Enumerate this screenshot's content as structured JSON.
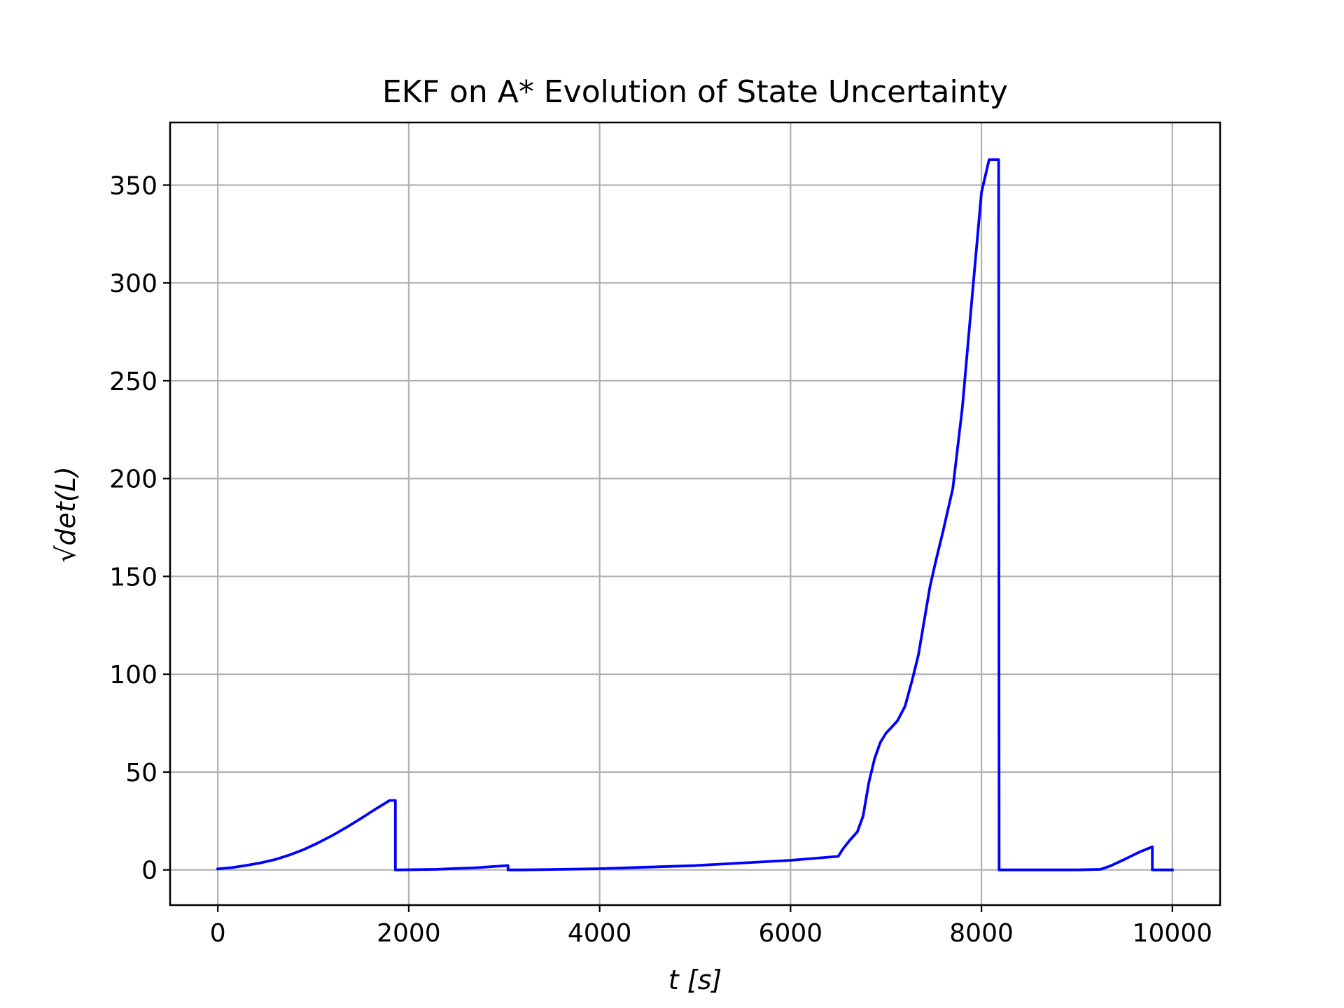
{
  "chart_data": {
    "type": "line",
    "title": "EKF on A* Evolution of State Uncertainty",
    "xlabel": "t [s]",
    "ylabel": "√det(L)",
    "xlim": [
      -500,
      10500
    ],
    "ylim": [
      -18,
      382
    ],
    "xticks": [
      0,
      2000,
      4000,
      6000,
      8000,
      10000
    ],
    "yticks": [
      0,
      50,
      100,
      150,
      200,
      250,
      300,
      350
    ],
    "grid": true,
    "legend": "none",
    "series": [
      {
        "color": "#0000ff",
        "x": [
          0,
          150,
          300,
          450,
          600,
          750,
          900,
          1050,
          1200,
          1350,
          1500,
          1650,
          1800,
          1860,
          1860,
          1900,
          2300,
          2700,
          3040,
          3040,
          3200,
          4000,
          5000,
          6000,
          6500,
          6550,
          6620,
          6700,
          6760,
          6820,
          6880,
          6940,
          7000,
          7060,
          7120,
          7200,
          7280,
          7340,
          7400,
          7460,
          7520,
          7600,
          7700,
          7800,
          7900,
          8000,
          8080,
          8150,
          8180,
          8185,
          8185,
          8400,
          9000,
          9250,
          9350,
          9500,
          9650,
          9790,
          9790,
          10000
        ],
        "y": [
          0.5,
          1.2,
          2.3,
          3.6,
          5.3,
          7.6,
          10.4,
          13.8,
          17.6,
          21.8,
          26.3,
          31.0,
          35.5,
          35.5,
          0,
          0,
          0.3,
          1.1,
          2.2,
          0,
          0,
          0.6,
          2.2,
          4.9,
          6.9,
          10.8,
          15.1,
          19.5,
          27.5,
          44.6,
          56.8,
          65.1,
          69.9,
          73.0,
          76.2,
          83.7,
          98.1,
          110.0,
          127.3,
          144.6,
          157.5,
          173.6,
          195.0,
          236.4,
          291.7,
          346.2,
          363.0,
          363.0,
          363.0,
          0,
          0,
          0,
          0,
          0.3,
          2.0,
          5.4,
          9.0,
          11.8,
          0,
          0
        ]
      }
    ]
  }
}
